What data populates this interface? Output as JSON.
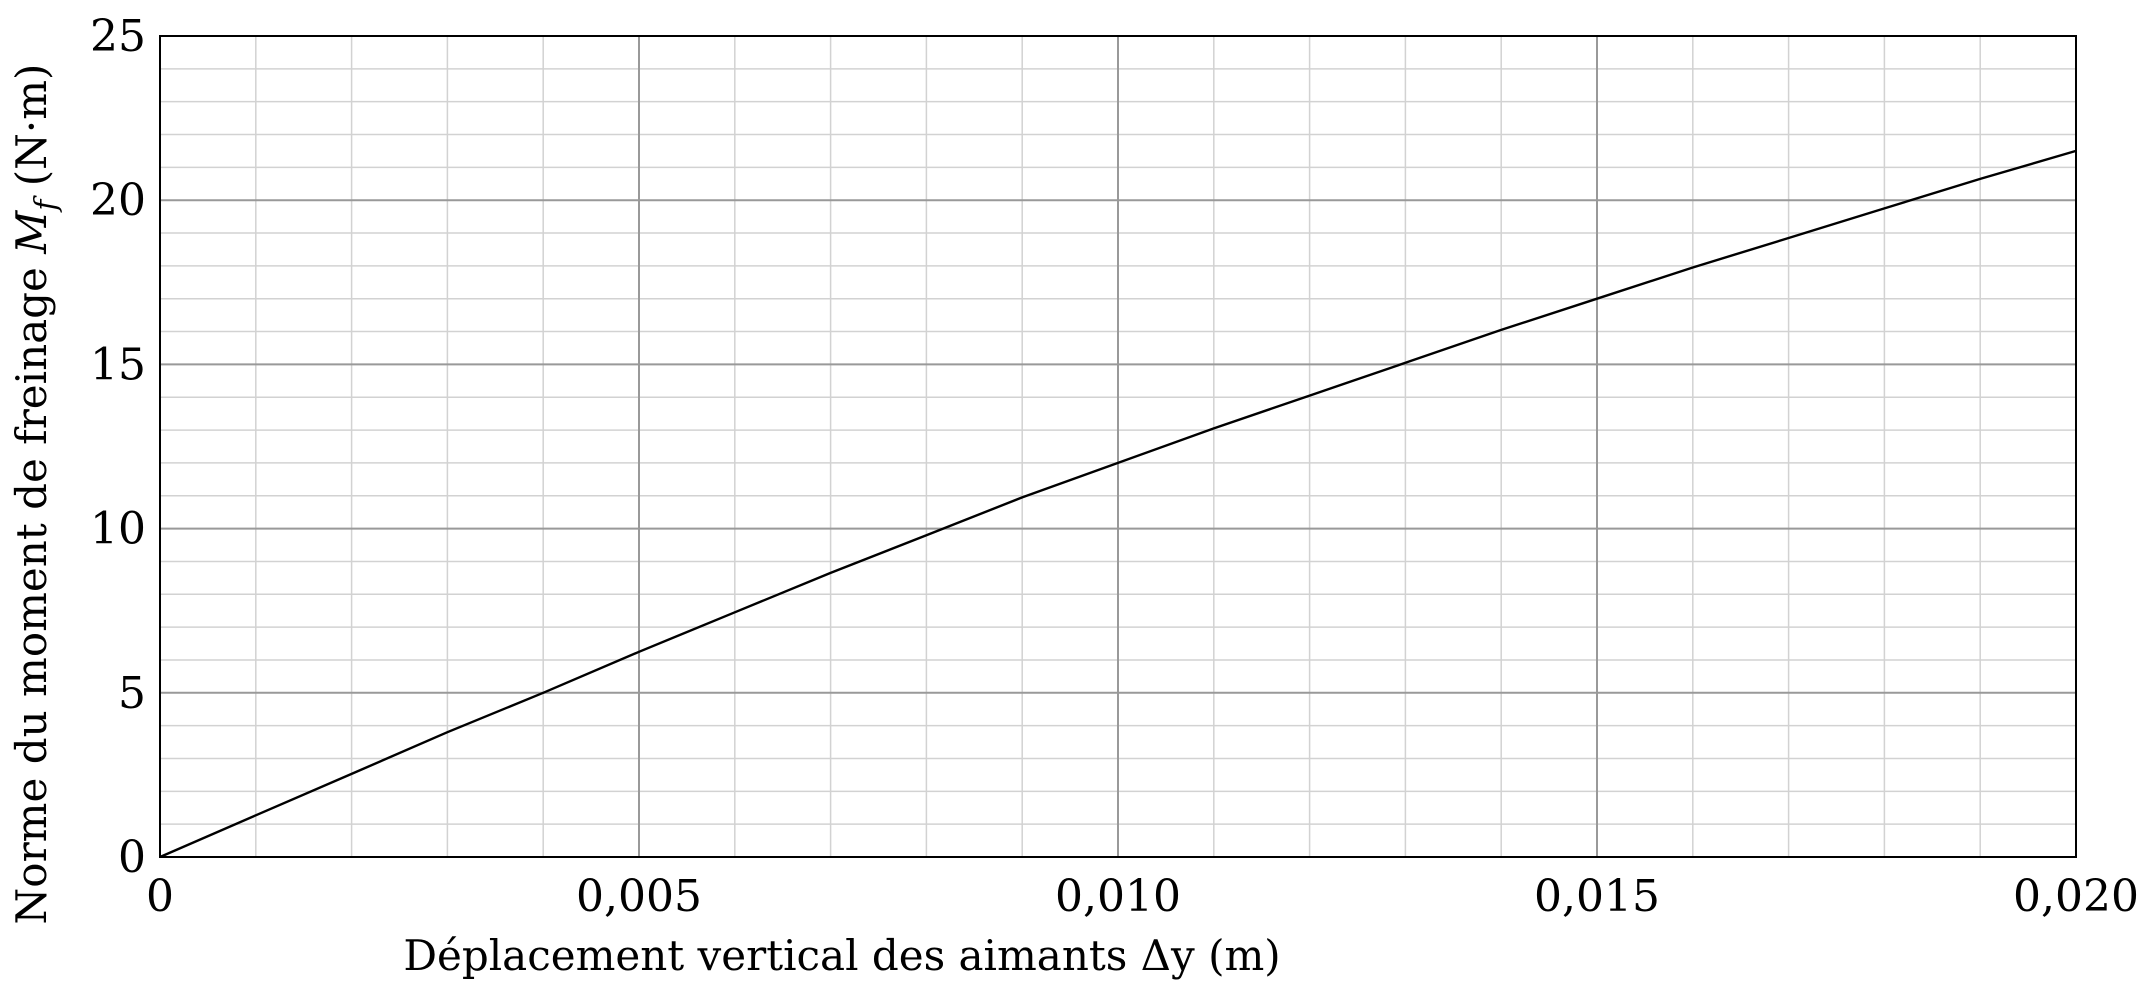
{
  "chart_data": {
    "type": "line",
    "xlabel": "Déplacement vertical des aimants Δy (m)",
    "ylabel": "Norme du moment de freinage M_f (N·m)",
    "ylabel_parts": {
      "pre": "Norme du moment de freinage ",
      "symbol": "M",
      "subscript": "f",
      "post": " (N·m)"
    },
    "xlim": [
      0,
      0.02
    ],
    "ylim": [
      0,
      25
    ],
    "x_ticks": [
      0,
      0.005,
      0.01,
      0.015,
      0.02
    ],
    "x_tick_labels": [
      "0",
      "0,005",
      "0,010",
      "0,015",
      "0,020"
    ],
    "y_ticks": [
      0,
      5,
      10,
      15,
      20,
      25
    ],
    "y_tick_labels": [
      "0",
      "5",
      "10",
      "15",
      "20",
      "25"
    ],
    "x_minor_step": 0.001,
    "y_minor_step": 1,
    "grid": true,
    "series": [
      {
        "x": [
          0,
          0.001,
          0.002,
          0.003,
          0.004,
          0.005,
          0.006,
          0.007,
          0.008,
          0.009,
          0.01,
          0.011,
          0.012,
          0.013,
          0.014,
          0.015,
          0.016,
          0.017,
          0.018,
          0.019,
          0.02
        ],
        "y": [
          0,
          1.27,
          2.53,
          3.8,
          5.0,
          6.25,
          7.45,
          8.65,
          9.8,
          10.95,
          12.0,
          13.05,
          14.05,
          15.05,
          16.05,
          17.0,
          17.95,
          18.85,
          19.75,
          20.65,
          21.5
        ]
      }
    ],
    "colors": {
      "line": "#000000",
      "major_grid": "#999999",
      "minor_grid": "#d2d2d2",
      "frame": "#000000"
    }
  }
}
